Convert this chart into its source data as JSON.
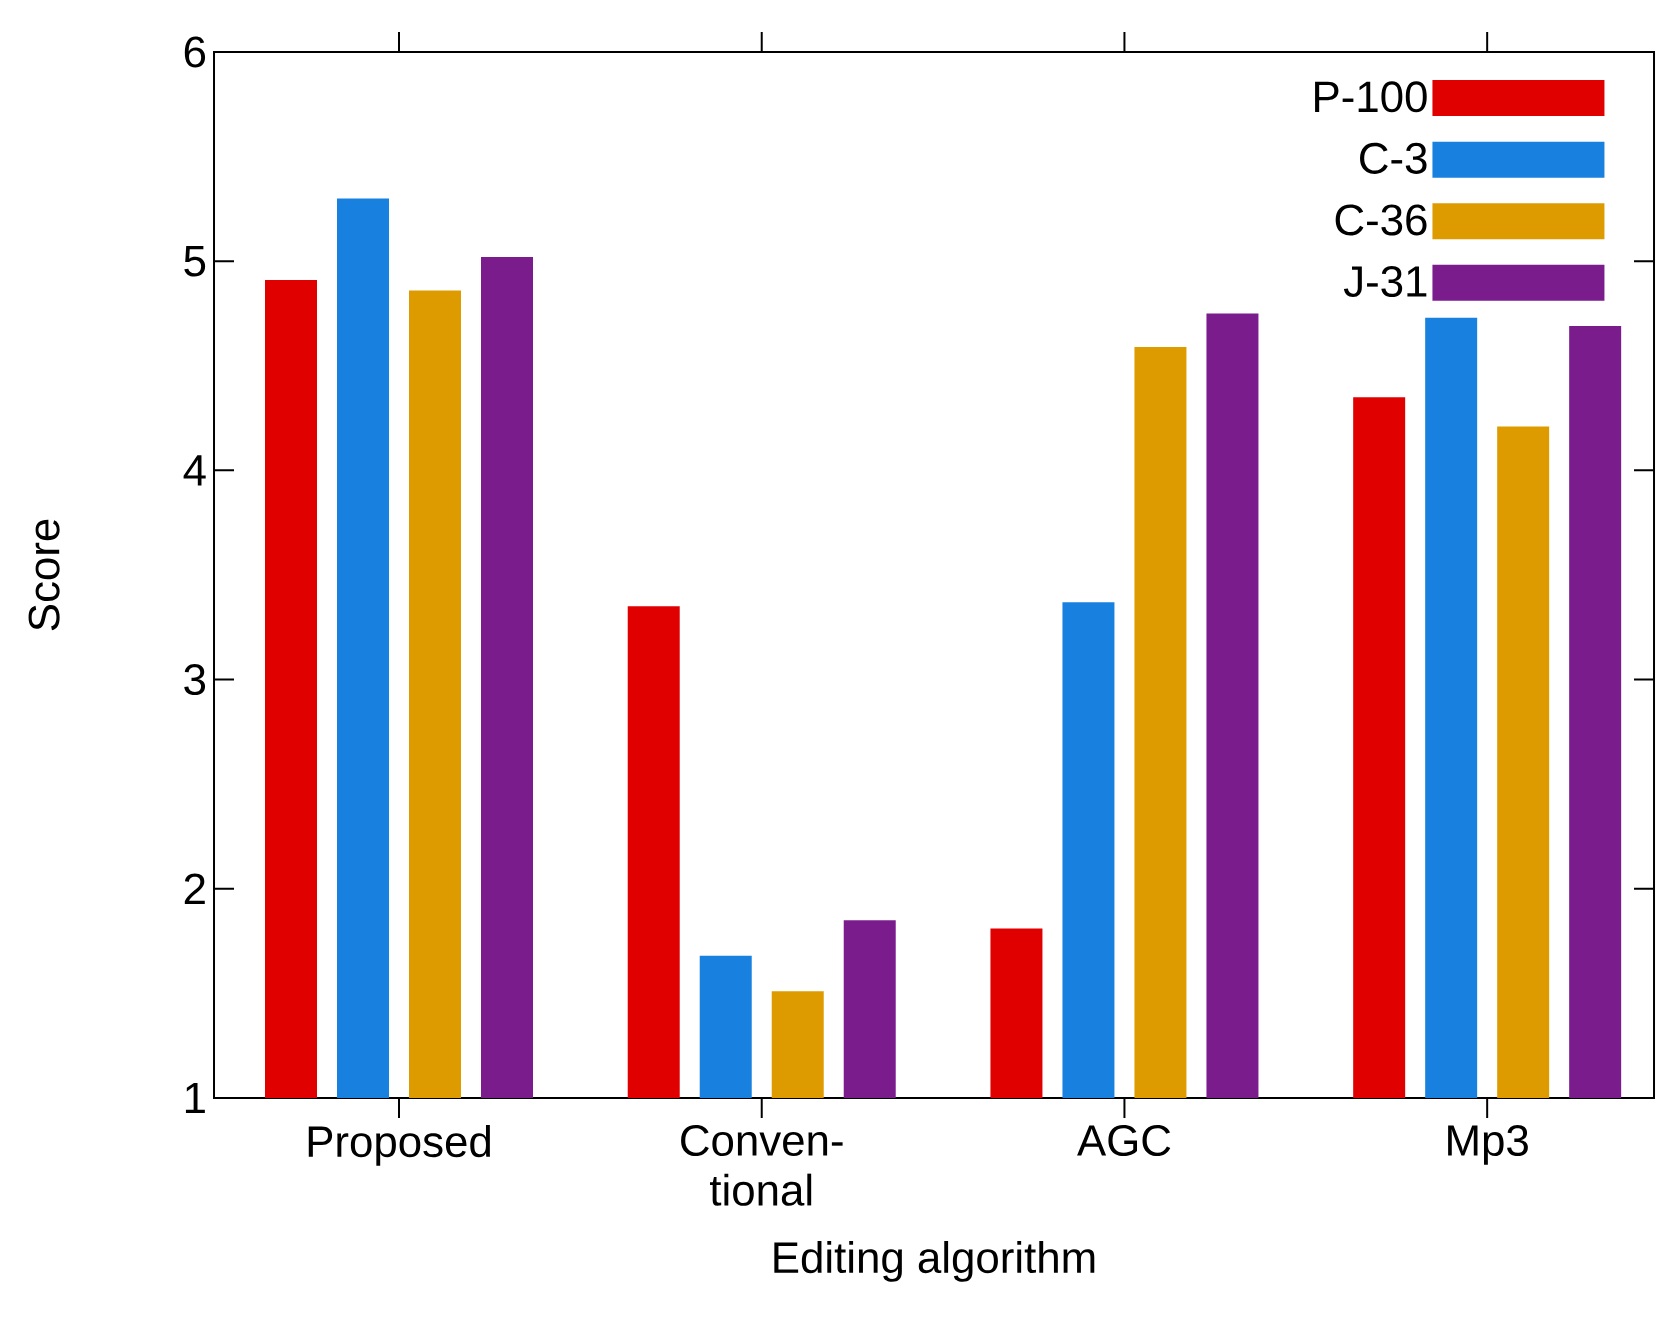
{
  "chart_data": {
    "type": "bar",
    "xlabel": "Editing algorithm",
    "ylabel": "Score",
    "categories": [
      "Proposed",
      "Conven-tional",
      "AGC",
      "Mp3"
    ],
    "series": [
      {
        "name": "P-100",
        "color": "#e00000",
        "values": [
          4.91,
          3.35,
          1.81,
          4.35
        ]
      },
      {
        "name": "C-3",
        "color": "#1880de",
        "values": [
          5.3,
          1.68,
          3.37,
          4.73
        ]
      },
      {
        "name": "C-36",
        "color": "#de9b00",
        "values": [
          4.86,
          1.51,
          4.59,
          4.21
        ]
      },
      {
        "name": "J-31",
        "color": "#7b1c8c",
        "values": [
          5.02,
          1.85,
          4.75,
          4.69
        ]
      }
    ],
    "ylim": [
      1,
      6
    ],
    "yticks": [
      1,
      2,
      3,
      4,
      5,
      6
    ],
    "legend": "top right"
  }
}
